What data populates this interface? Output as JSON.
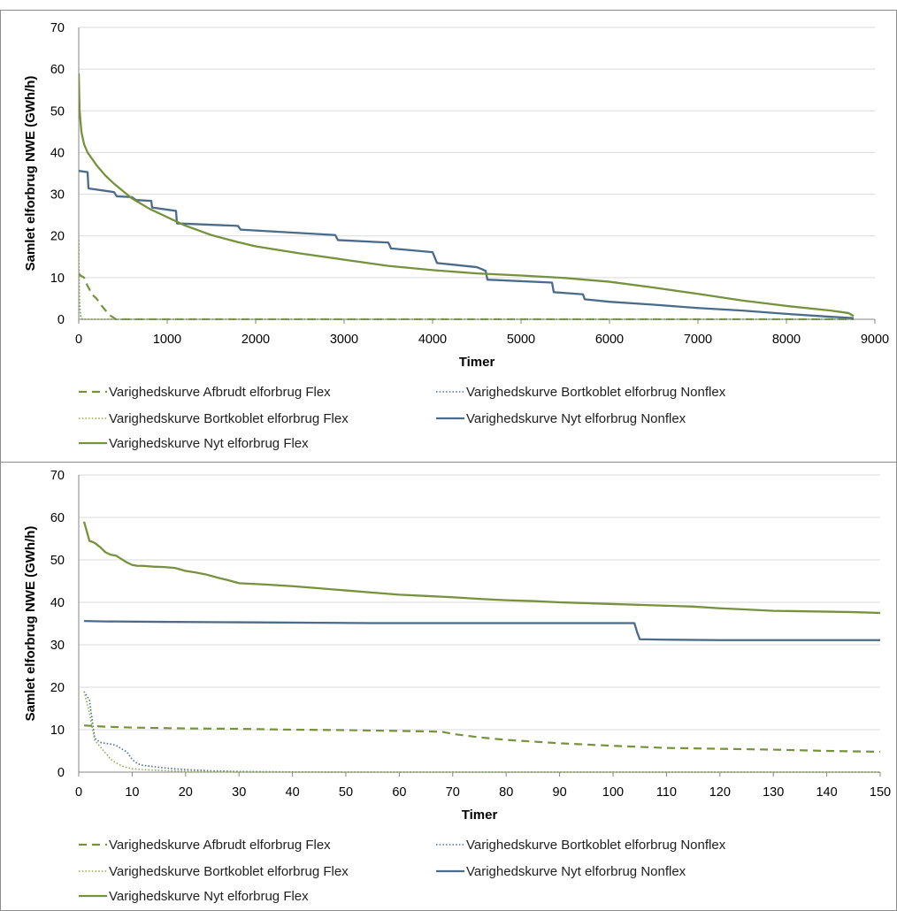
{
  "colors": {
    "olive": "#76923c",
    "olive_light": "#8faa4a",
    "steel": "#4a6b8a",
    "steel_dark": "#3d5a78"
  },
  "chart_data": [
    {
      "type": "line",
      "ylabel": "Samlet elforbrug NWE (GWh/h)",
      "xlabel": "Timer",
      "xlim": [
        0,
        9000
      ],
      "ylim": [
        0,
        70
      ],
      "xticks": [
        "0",
        "1000",
        "2000",
        "3000",
        "4000",
        "5000",
        "6000",
        "7000",
        "8000",
        "9000"
      ],
      "yticks": [
        "0",
        "10",
        "20",
        "30",
        "40",
        "50",
        "60",
        "70"
      ],
      "grid": true,
      "legend_position": "bottom",
      "series": [
        {
          "name": "Varighedskurve Afbrudt elforbrug Flex",
          "style": "dashed",
          "color": "#76923c",
          "x": [
            0,
            20,
            60,
            100,
            150,
            200,
            250,
            300,
            350,
            400,
            420,
            8760
          ],
          "y": [
            11,
            10.5,
            10,
            8,
            6,
            5,
            3.5,
            2.2,
            1,
            0.3,
            0,
            0
          ]
        },
        {
          "name": "Varighedskurve Bortkoblet elforbrug Nonflex",
          "style": "dotted",
          "color": "#4a6b8a",
          "x": [
            0,
            5,
            10,
            20,
            40,
            8760
          ],
          "y": [
            19,
            8,
            4,
            1,
            0,
            0
          ]
        },
        {
          "name": "Varighedskurve Bortkoblet elforbrug Flex",
          "style": "dotted",
          "color": "#8faa4a",
          "x": [
            0,
            5,
            10,
            20,
            40,
            8760
          ],
          "y": [
            19,
            7,
            3,
            0.5,
            0,
            0
          ]
        },
        {
          "name": "Varighedskurve Nyt elforbrug Nonflex",
          "style": "solid",
          "color": "#4a6b8a",
          "x": [
            0,
            100,
            110,
            400,
            430,
            600,
            650,
            820,
            830,
            1100,
            1110,
            1800,
            1830,
            2900,
            2930,
            3500,
            3530,
            4000,
            4050,
            4500,
            4560,
            4600,
            4620,
            5350,
            5370,
            5700,
            5720,
            6000,
            6500,
            7000,
            7500,
            8000,
            8500,
            8760
          ],
          "y": [
            35.6,
            35.3,
            31.4,
            30.5,
            29.5,
            29.3,
            28.6,
            28.4,
            26.8,
            26,
            23,
            22.4,
            21.5,
            20.2,
            19,
            18.4,
            17,
            16.1,
            13.5,
            12.5,
            12,
            11.6,
            9.5,
            8.8,
            6.5,
            6,
            4.8,
            4.2,
            3.5,
            2.7,
            2.1,
            1.3,
            0.6,
            0.3
          ]
        },
        {
          "name": "Varighedskurve Nyt elforbrug Flex",
          "style": "solid",
          "color": "#76923c",
          "x": [
            0,
            10,
            30,
            60,
            100,
            150,
            200,
            300,
            400,
            600,
            800,
            1000,
            1200,
            1500,
            1800,
            2000,
            2500,
            3000,
            3500,
            4000,
            4500,
            5000,
            5500,
            6000,
            6500,
            7000,
            7500,
            8000,
            8500,
            8700,
            8760
          ],
          "y": [
            59,
            50,
            45,
            42,
            40,
            38.5,
            37,
            34.5,
            32.5,
            29,
            26.5,
            24.5,
            22.5,
            20.2,
            18.5,
            17.5,
            15.8,
            14.3,
            12.8,
            11.8,
            11,
            10.5,
            9.9,
            9,
            7.6,
            6.1,
            4.5,
            3.2,
            2.1,
            1.5,
            0.8
          ]
        }
      ]
    },
    {
      "type": "line",
      "ylabel": "Samlet elforbrug NWE (GWh/h)",
      "xlabel": "Timer",
      "xlim": [
        0,
        150
      ],
      "ylim": [
        0,
        70
      ],
      "xticks": [
        "0",
        "10",
        "20",
        "30",
        "40",
        "50",
        "60",
        "70",
        "80",
        "90",
        "100",
        "110",
        "120",
        "130",
        "140",
        "150"
      ],
      "yticks": [
        "0",
        "10",
        "20",
        "30",
        "40",
        "50",
        "60",
        "70"
      ],
      "grid": true,
      "legend_position": "bottom",
      "series": [
        {
          "name": "Varighedskurve Afbrudt elforbrug Flex",
          "style": "dashed",
          "color": "#76923c",
          "x": [
            1,
            5,
            10,
            20,
            30,
            40,
            50,
            60,
            65,
            68,
            70,
            75,
            80,
            85,
            90,
            100,
            110,
            120,
            130,
            140,
            150
          ],
          "y": [
            11,
            10.7,
            10.5,
            10.3,
            10.2,
            10,
            9.9,
            9.7,
            9.6,
            9.5,
            9,
            8.2,
            7.6,
            7.2,
            6.8,
            6.2,
            5.7,
            5.5,
            5.3,
            5,
            4.8
          ]
        },
        {
          "name": "Varighedskurve Bortkoblet elforbrug Nonflex",
          "style": "dotted",
          "color": "#4a6b8a",
          "x": [
            1,
            2,
            3,
            4,
            5,
            6,
            7,
            8,
            9,
            10,
            11,
            12,
            14,
            16,
            18,
            20,
            25,
            30,
            40,
            50,
            150
          ],
          "y": [
            19,
            17,
            8,
            7,
            6.8,
            6.6,
            6.3,
            5.5,
            4.8,
            3,
            2,
            1.6,
            1.3,
            1,
            0.8,
            0.6,
            0.3,
            0.15,
            0.05,
            0,
            0
          ]
        },
        {
          "name": "Varighedskurve Bortkoblet elforbrug Flex",
          "style": "dotted",
          "color": "#8faa4a",
          "x": [
            1,
            2,
            3,
            4,
            5,
            6,
            7,
            8,
            9,
            10,
            12,
            15,
            20,
            25,
            30,
            150
          ],
          "y": [
            19,
            14,
            7.5,
            6,
            4.5,
            3,
            2.2,
            1.5,
            1.1,
            0.8,
            0.6,
            0.4,
            0.2,
            0.1,
            0,
            0
          ]
        },
        {
          "name": "Varighedskurve Nyt elforbrug Nonflex",
          "style": "solid",
          "color": "#4a6b8a",
          "x": [
            1,
            5,
            15,
            30,
            55,
            70,
            90,
            104,
            104.5,
            105,
            110,
            120,
            130,
            140,
            150
          ],
          "y": [
            35.6,
            35.5,
            35.4,
            35.3,
            35.1,
            35.1,
            35.1,
            35.1,
            33,
            31.3,
            31.2,
            31.1,
            31.1,
            31.1,
            31.1
          ]
        },
        {
          "name": "Varighedskurve Nyt elforbrug Flex",
          "style": "solid",
          "color": "#76923c",
          "x": [
            1,
            2,
            3,
            4,
            5,
            6,
            7,
            8,
            9,
            10,
            11,
            12,
            14,
            16,
            18,
            20,
            22,
            24,
            26,
            28,
            30,
            35,
            40,
            45,
            50,
            55,
            60,
            65,
            70,
            75,
            80,
            85,
            90,
            95,
            100,
            105,
            110,
            115,
            120,
            125,
            130,
            135,
            140,
            145,
            150
          ],
          "y": [
            59,
            54.5,
            54,
            53,
            51.8,
            51.2,
            51,
            50.2,
            49.4,
            48.8,
            48.6,
            48.6,
            48.4,
            48.3,
            48.1,
            47.4,
            47,
            46.5,
            45.8,
            45.2,
            44.5,
            44.2,
            43.8,
            43.3,
            42.8,
            42.3,
            41.8,
            41.5,
            41.2,
            40.8,
            40.5,
            40.3,
            40,
            39.8,
            39.6,
            39.4,
            39.2,
            39,
            38.6,
            38.3,
            38,
            37.9,
            37.8,
            37.7,
            37.5
          ]
        }
      ]
    }
  ]
}
